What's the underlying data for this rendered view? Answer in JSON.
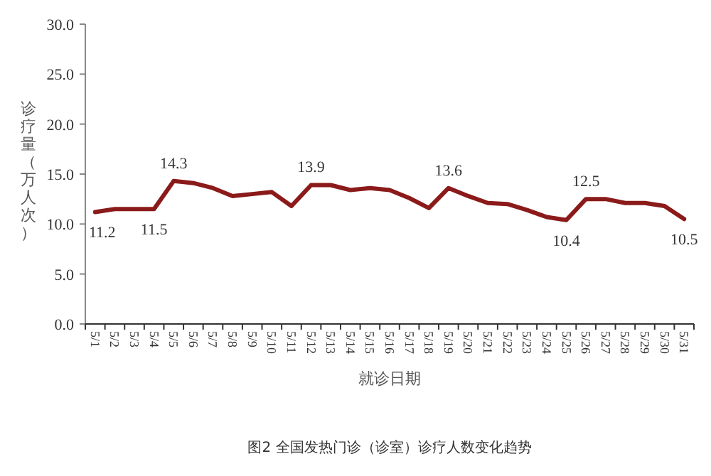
{
  "chart_data": {
    "type": "line",
    "xlabel": "就诊日期",
    "ylabel": "诊疗量（万人次）",
    "categories": [
      "5/1",
      "5/2",
      "5/3",
      "5/4",
      "5/5",
      "5/6",
      "5/7",
      "5/8",
      "5/9",
      "5/10",
      "5/11",
      "5/12",
      "5/13",
      "5/14",
      "5/15",
      "5/16",
      "5/17",
      "5/18",
      "5/19",
      "5/20",
      "5/21",
      "5/22",
      "5/23",
      "5/24",
      "5/25",
      "5/26",
      "5/27",
      "5/28",
      "5/29",
      "5/30",
      "5/31"
    ],
    "series": [
      {
        "color": "#8b1a1a",
        "values": [
          11.2,
          11.5,
          11.5,
          11.5,
          14.3,
          14.1,
          13.6,
          12.8,
          13.0,
          13.2,
          11.8,
          13.9,
          13.9,
          13.4,
          13.6,
          13.4,
          12.6,
          11.6,
          13.6,
          12.8,
          12.1,
          12.0,
          11.4,
          10.7,
          10.4,
          12.5,
          12.5,
          12.1,
          12.1,
          11.8,
          10.5
        ],
        "value_labels": [
          "11.2",
          null,
          null,
          "11.5",
          "14.3",
          null,
          null,
          null,
          null,
          null,
          null,
          "13.9",
          null,
          null,
          null,
          null,
          null,
          null,
          "13.6",
          null,
          null,
          null,
          null,
          null,
          "10.4",
          "12.5",
          null,
          null,
          null,
          null,
          "10.5"
        ]
      }
    ],
    "ylim": [
      0,
      30
    ],
    "yticks": [
      {
        "value": 0,
        "label": "0.0"
      },
      {
        "value": 5,
        "label": "5.0"
      },
      {
        "value": 10,
        "label": "10.0"
      },
      {
        "value": 15,
        "label": "15.0"
      },
      {
        "value": 20,
        "label": "20.0"
      },
      {
        "value": 25,
        "label": "25.0"
      },
      {
        "value": 30,
        "label": "30.0"
      }
    ],
    "grid": false,
    "marker": "none",
    "line_style": "solid",
    "annotations": [
      "图2 全国发热门诊（诊室）诊疗人数变化趋势"
    ]
  }
}
